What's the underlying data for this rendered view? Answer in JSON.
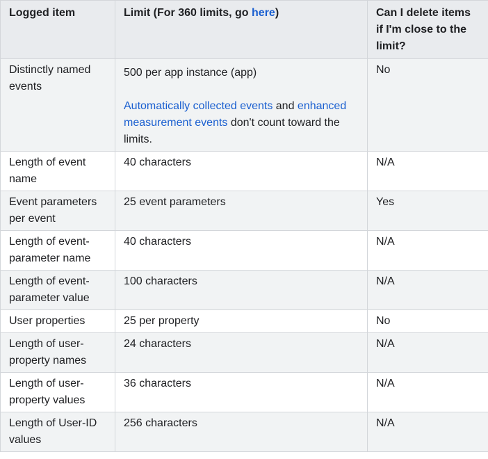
{
  "table": {
    "headers": {
      "logged_item": "Logged item",
      "limit_prefix": "Limit (For 360 limits, go ",
      "limit_link": "here",
      "limit_suffix": ")",
      "can_delete": "Can I delete items if I'm close to the limit?"
    },
    "first_row": {
      "item": "Distinctly named events",
      "limit": "500 per app instance (app)",
      "note_link1": "Automatically collected events",
      "note_and": " and ",
      "note_link2": "enhanced measurement events",
      "note_rest": " don't count toward the limits.",
      "can_delete": "No"
    },
    "rows": [
      {
        "item": "Length of event name",
        "limit": "40 characters",
        "can_delete": "N/A"
      },
      {
        "item": "Event parameters per event",
        "limit": "25 event parameters",
        "can_delete": "Yes"
      },
      {
        "item": "Length of event-parameter name",
        "limit": "40 characters",
        "can_delete": "N/A"
      },
      {
        "item": "Length of event-parameter value",
        "limit": "100 characters",
        "can_delete": "N/A"
      },
      {
        "item": "User properties",
        "limit": "25 per property",
        "can_delete": "No"
      },
      {
        "item": "Length of user-property names",
        "limit": "24 characters",
        "can_delete": "N/A"
      },
      {
        "item": "Length of user-property values",
        "limit": "36 characters",
        "can_delete": "N/A"
      },
      {
        "item": "Length of User-ID values",
        "limit": "256 characters",
        "can_delete": "N/A"
      }
    ]
  }
}
